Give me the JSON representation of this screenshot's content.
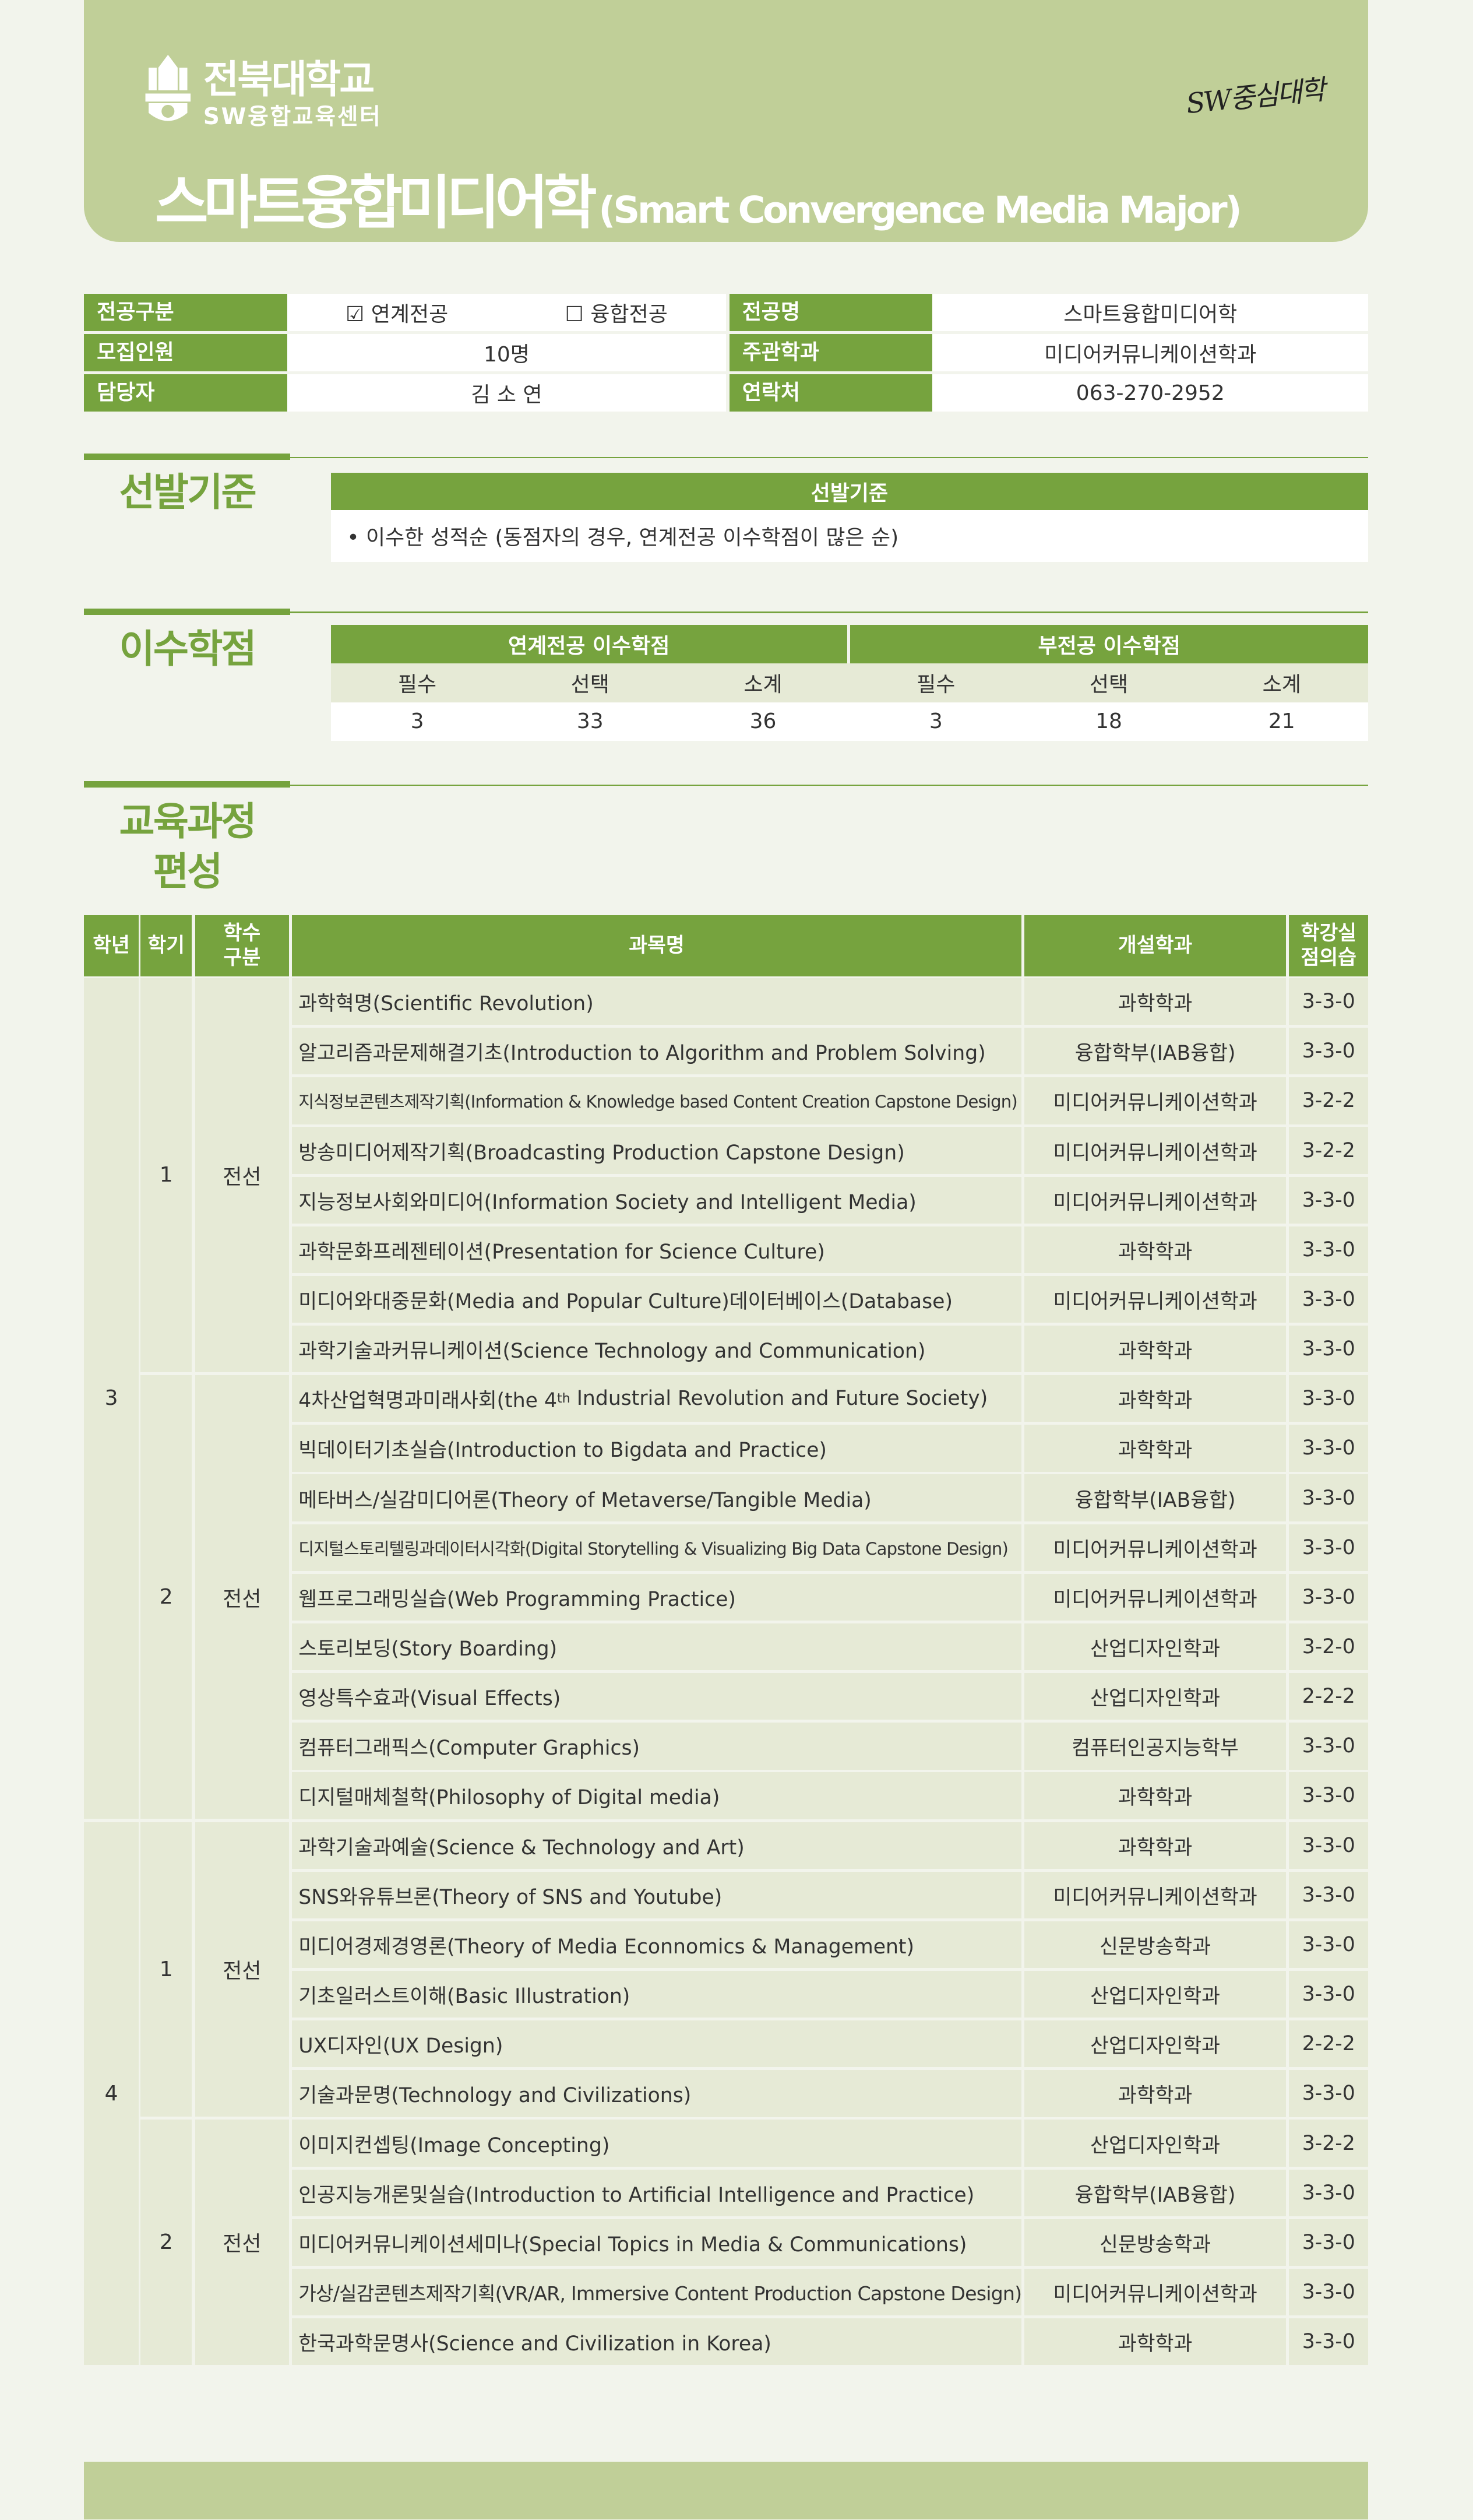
{
  "header": {
    "university": "전북대학교",
    "center": "SW융합교육센터",
    "badge": "SW중심대학",
    "title_ko": "스마트융합미디어학",
    "title_en": "(Smart Convergence Media Major)"
  },
  "colors": {
    "accent": "#76a33e",
    "header_bg": "#c0cf98",
    "row_bg": "#e6ead6",
    "page_bg": "#f2f4ec"
  },
  "info": {
    "major_type_label": "전공구분",
    "major_type_options": [
      {
        "label": "연계전공",
        "checked": true
      },
      {
        "label": "융합전공",
        "checked": false
      }
    ],
    "major_name_label": "전공명",
    "major_name": "스마트융합미디어학",
    "quota_label": "모집인원",
    "quota": "10명",
    "dept_label": "주관학과",
    "dept": "미디어커뮤니케이션학과",
    "manager_label": "담당자",
    "manager": "김 소 연",
    "contact_label": "연락처",
    "contact": "063-270-2952"
  },
  "selection": {
    "section_title": "선발기준",
    "header": "선발기준",
    "text": "• 이수한 성적순 (동점자의 경우, 연계전공 이수학점이 많은 순)"
  },
  "credits": {
    "section_title": "이수학점",
    "groups": [
      "연계전공 이수학점",
      "부전공 이수학점"
    ],
    "columns": [
      "필수",
      "선택",
      "소계",
      "필수",
      "선택",
      "소계"
    ],
    "values": [
      "3",
      "33",
      "36",
      "3",
      "18",
      "21"
    ]
  },
  "curriculum": {
    "section_title_1": "교육과정",
    "section_title_2": "편성",
    "headers": {
      "year": "학년",
      "semester": "학기",
      "type_1": "학수",
      "type_2": "구분",
      "name": "과목명",
      "dept": "개설학과",
      "credit_1": "학강실",
      "credit_2": "점의습"
    },
    "groups": [
      {
        "year": "3",
        "semester": "1",
        "type": "전선",
        "courses": [
          {
            "name": "과학혁명(Scientific Revolution)",
            "dept": "과학학과",
            "credit": "3-3-0"
          },
          {
            "name": "알고리즘과문제해결기초(Introduction to Algorithm and Problem Solving)",
            "dept": "융합학부(IAB융합)",
            "credit": "3-3-0"
          },
          {
            "name": "지식정보콘텐츠제작기획(Information & Knowledge based Content Creation Capstone Design)",
            "dept": "미디어커뮤니케이션학과",
            "credit": "3-2-2"
          },
          {
            "name": "방송미디어제작기획(Broadcasting Production Capstone Design)",
            "dept": "미디어커뮤니케이션학과",
            "credit": "3-2-2"
          },
          {
            "name": "지능정보사회와미디어(Information Society and Intelligent Media)",
            "dept": "미디어커뮤니케이션학과",
            "credit": "3-3-0"
          },
          {
            "name": "과학문화프레젠테이션(Presentation for Science Culture)",
            "dept": "과학학과",
            "credit": "3-3-0"
          },
          {
            "name": "미디어와대중문화(Media and Popular Culture)데이터베이스(Database)",
            "dept": "미디어커뮤니케이션학과",
            "credit": "3-3-0"
          },
          {
            "name": "과학기술과커뮤니케이션(Science Technology and Communication)",
            "dept": "과학학과",
            "credit": "3-3-0"
          }
        ]
      },
      {
        "year": "3",
        "semester": "2",
        "type": "전선",
        "courses": [
          {
            "name": "4차산업혁명과미래사회(the 4",
            "sup": "th",
            "name_rest": " Industrial Revolution and Future Society)",
            "dept": "과학학과",
            "credit": "3-3-0"
          },
          {
            "name": "빅데이터기초실습(Introduction to Bigdata and Practice)",
            "dept": "과학학과",
            "credit": "3-3-0"
          },
          {
            "name": "메타버스/실감미디어론(Theory of Metaverse/Tangible Media)",
            "dept": "융합학부(IAB융합)",
            "credit": "3-3-0"
          },
          {
            "name": "디지털스토리텔링과데이터시각화(Digital Storytelling & Visualizing Big Data Capstone Design)",
            "dept": "미디어커뮤니케이션학과",
            "credit": "3-3-0"
          },
          {
            "name": "웹프로그래밍실습(Web Programming Practice)",
            "dept": "미디어커뮤니케이션학과",
            "credit": "3-3-0"
          },
          {
            "name": "스토리보딩(Story Boarding)",
            "dept": "산업디자인학과",
            "credit": "3-2-0"
          },
          {
            "name": "영상특수효과(Visual Effects)",
            "dept": "산업디자인학과",
            "credit": "2-2-2"
          },
          {
            "name": "컴퓨터그래픽스(Computer Graphics)",
            "dept": "컴퓨터인공지능학부",
            "credit": "3-3-0"
          },
          {
            "name": "디지털매체철학(Philosophy of Digital media)",
            "dept": "과학학과",
            "credit": "3-3-0"
          }
        ]
      },
      {
        "year": "4",
        "semester": "1",
        "type": "전선",
        "courses": [
          {
            "name": "과학기술과예술(Science & Technology and Art)",
            "dept": "과학학과",
            "credit": "3-3-0"
          },
          {
            "name": "SNS와유튜브론(Theory of SNS and Youtube)",
            "dept": "미디어커뮤니케이션학과",
            "credit": "3-3-0"
          },
          {
            "name": "미디어경제경영론(Theory of Media Econnomics & Management)",
            "dept": "신문방송학과",
            "credit": "3-3-0"
          },
          {
            "name": "기초일러스트이해(Basic Illustration)",
            "dept": "산업디자인학과",
            "credit": "3-3-0"
          },
          {
            "name": "UX디자인(UX Design)",
            "dept": "산업디자인학과",
            "credit": "2-2-2"
          },
          {
            "name": "기술과문명(Technology and Civilizations)",
            "dept": "과학학과",
            "credit": "3-3-0"
          }
        ]
      },
      {
        "year": "4",
        "semester": "2",
        "type": "전선",
        "courses": [
          {
            "name": "이미지컨셉팅(Image Concepting)",
            "dept": "산업디자인학과",
            "credit": "3-2-2"
          },
          {
            "name": "인공지능개론및실습(Introduction to Artificial Intelligence and Practice)",
            "dept": "융합학부(IAB융합)",
            "credit": "3-3-0"
          },
          {
            "name": "미디어커뮤니케이션세미나(Special Topics in Media & Communications)",
            "dept": "신문방송학과",
            "credit": "3-3-0"
          },
          {
            "name": "가상/실감콘텐츠제작기획(VR/AR, Immersive Content Production Capstone Design)",
            "dept": "미디어커뮤니케이션학과",
            "credit": "3-3-0"
          },
          {
            "name": "한국과학문명사(Science and Civilization in Korea)",
            "dept": "과학학과",
            "credit": "3-3-0"
          }
        ]
      }
    ]
  }
}
